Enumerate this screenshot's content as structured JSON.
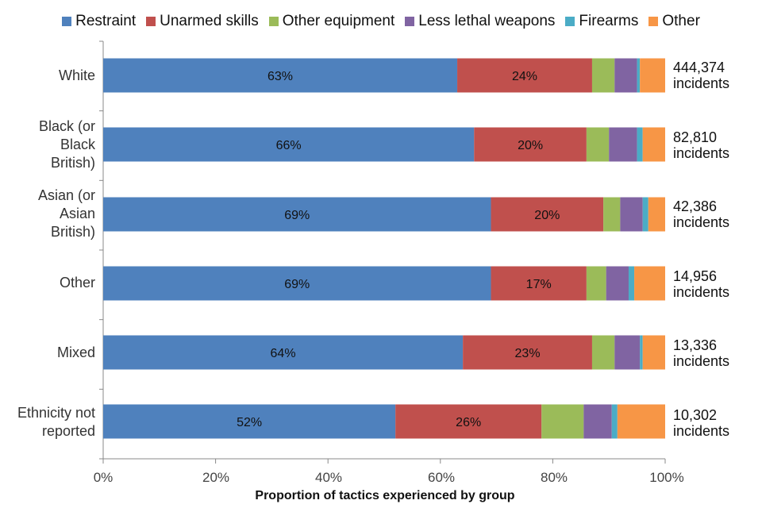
{
  "chart_data": {
    "type": "bar",
    "orientation": "horizontal",
    "stacked": true,
    "legend_position": "top",
    "xlabel": "Proportion of tactics experienced by group",
    "xlim": [
      0,
      100
    ],
    "x_ticks": [
      "0%",
      "20%",
      "40%",
      "60%",
      "80%",
      "100%"
    ],
    "categories": [
      "White",
      "Black (or Black British)",
      "Asian (or Asian British)",
      "Other",
      "Mixed",
      "Ethnicity not reported"
    ],
    "category_display": [
      "White",
      "Black (or\nBlack\nBritish)",
      "Asian (or\nAsian\nBritish)",
      "Other",
      "Mixed",
      "Ethnicity not\nreported"
    ],
    "totals": [
      "444,374\nincidents",
      "82,810\nincidents",
      "42,386\nincidents",
      "14,956\nincidents",
      "13,336\nincidents",
      "10,302\nincidents"
    ],
    "series": [
      {
        "name": "Restraint",
        "color": "#4f81bd",
        "values": [
          63,
          66,
          69,
          69,
          64,
          52
        ],
        "labels": [
          "63%",
          "66%",
          "69%",
          "69%",
          "64%",
          "52%"
        ]
      },
      {
        "name": "Unarmed skills",
        "color": "#c0504d",
        "values": [
          24,
          20,
          20,
          17,
          23,
          26
        ],
        "labels": [
          "24%",
          "20%",
          "20%",
          "17%",
          "23%",
          "26%"
        ]
      },
      {
        "name": "Other equipment",
        "color": "#9bbb59",
        "values": [
          4,
          4,
          3,
          3.5,
          4,
          7.5
        ]
      },
      {
        "name": "Less lethal weapons",
        "color": "#8064a2",
        "values": [
          4,
          5,
          4,
          4,
          4.5,
          5
        ]
      },
      {
        "name": "Firearms",
        "color": "#4bacc6",
        "values": [
          0.5,
          1,
          1,
          1,
          0.5,
          1
        ]
      },
      {
        "name": "Other",
        "color": "#f79646",
        "values": [
          4.5,
          4,
          3,
          5.5,
          4,
          8.5
        ]
      }
    ]
  }
}
